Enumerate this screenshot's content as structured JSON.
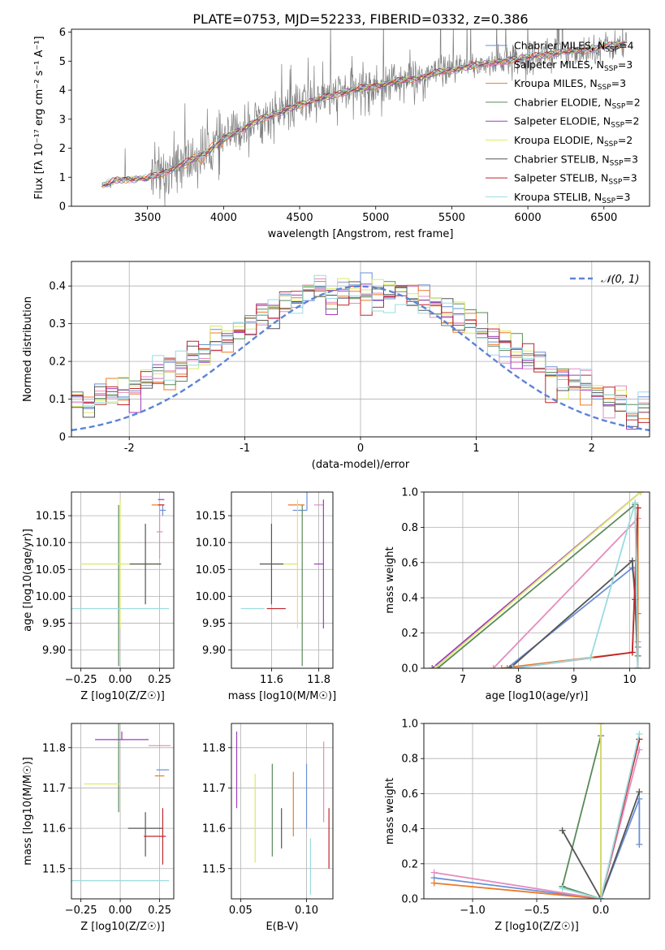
{
  "figure": {
    "title": "PLATE=0753, MJD=52233, FIBERID=0332, z=0.386"
  },
  "model_colors": {
    "Chabrier MILES": "#6a8fd8",
    "Salpeter MILES": "#e58cc0",
    "Kroupa MILES": "#ec7a27",
    "Chabrier ELODIE": "#5a8a5a",
    "Salpeter ELODIE": "#a03cbc",
    "Kroupa ELODIE": "#dde86a",
    "Chabrier STELIB": "#555555",
    "Salpeter STELIB": "#c1272d",
    "Kroupa STELIB": "#9adbe0"
  },
  "chart_data": [
    {
      "id": "spectrum",
      "type": "line",
      "xlabel": "wavelength [Angstrom, rest frame]",
      "ylabel": "Flux [fλ 10⁻¹⁷ erg cm⁻² s⁻¹ A⁻¹]",
      "xlim": [
        3000,
        6800
      ],
      "ylim": [
        0,
        6.1
      ],
      "xticks": [
        3500,
        4000,
        4500,
        5000,
        5500,
        6000,
        6500
      ],
      "yticks": [
        0,
        1,
        2,
        3,
        4,
        5,
        6
      ],
      "grid": false,
      "legend": {
        "position": "upper-right",
        "entries": [
          {
            "model": "Chabrier MILES",
            "n_ssp": "4"
          },
          {
            "model": "Salpeter MILES",
            "n_ssp": "3"
          },
          {
            "model": "Kroupa MILES",
            "n_ssp": "3"
          },
          {
            "model": "Chabrier ELODIE",
            "n_ssp": "2"
          },
          {
            "model": "Salpeter ELODIE",
            "n_ssp": "2"
          },
          {
            "model": "Kroupa ELODIE",
            "n_ssp": "2"
          },
          {
            "model": "Chabrier STELIB",
            "n_ssp": "3"
          },
          {
            "model": "Salpeter STELIB",
            "n_ssp": "3"
          },
          {
            "model": "Kroupa STELIB",
            "n_ssp": "3"
          }
        ]
      },
      "data_color": "#808080",
      "continuum": {
        "x": [
          3200,
          3300,
          3400,
          3500,
          3600,
          3700,
          3800,
          3900,
          4000,
          4100,
          4200,
          4300,
          4400,
          4500,
          4600,
          4700,
          4800,
          4900,
          5000,
          5100,
          5200,
          5300,
          5400,
          5500,
          5600,
          5700,
          5800,
          5900,
          6000,
          6100,
          6200,
          6300,
          6400,
          6500,
          6600,
          6650
        ],
        "y": [
          0.7,
          0.9,
          0.95,
          0.95,
          1.15,
          1.4,
          1.6,
          1.9,
          2.3,
          2.6,
          2.9,
          3.1,
          3.3,
          3.5,
          3.65,
          3.8,
          3.95,
          4.05,
          4.15,
          4.25,
          4.35,
          4.45,
          4.6,
          4.7,
          4.8,
          4.9,
          4.95,
          5.05,
          5.15,
          5.2,
          5.3,
          5.35,
          5.4,
          5.5,
          5.55,
          5.6
        ]
      }
    },
    {
      "id": "residual-histogram",
      "type": "histogram",
      "xlabel": "(data-model)/error",
      "ylabel": "Normed distribution",
      "xlim": [
        -2.5,
        2.5
      ],
      "ylim": [
        0,
        0.465
      ],
      "xticks": [
        -2,
        -1,
        0,
        1,
        2
      ],
      "yticks": [
        0.0,
        0.1,
        0.2,
        0.3,
        0.4
      ],
      "grid": true,
      "legend": {
        "position": "upper-right",
        "label": "𝒩(0, 1)"
      },
      "reference_curve": {
        "name": "normal",
        "mean": 0,
        "sigma": 1,
        "color": "#5b84d6"
      },
      "bin_width": 0.1
    },
    {
      "id": "age-vs-Z",
      "type": "errorbar",
      "xlabel": "Z [log10(Z/Z☉)]",
      "ylabel": "age  [log10(age/yr)]",
      "xlim": [
        -0.31,
        0.34
      ],
      "ylim": [
        9.866,
        10.194
      ],
      "xticks": [
        -0.25,
        0.0,
        0.25
      ],
      "xticklabels": [
        "−0.25",
        "0.00",
        "0.25"
      ],
      "yticks": [
        9.9,
        9.95,
        10.0,
        10.05,
        10.1,
        10.15
      ],
      "yticklabels": [
        "9.90",
        "9.95",
        "10.00",
        "10.05",
        "10.10",
        "10.15"
      ],
      "grid": true,
      "points": [
        {
          "model": "Chabrier MILES",
          "x": 0.27,
          "xerr": [
            0.02,
            0.02
          ],
          "y": 10.16,
          "yerr": [
            0.01,
            0.01
          ]
        },
        {
          "model": "Salpeter MILES",
          "x": 0.25,
          "xerr": [
            0.02,
            0.02
          ],
          "y": 10.12,
          "yerr": [
            0.05,
            0.05
          ]
        },
        {
          "model": "Kroupa MILES",
          "x": 0.24,
          "xerr": [
            0.04,
            0.04
          ],
          "y": 10.17,
          "yerr": [
            0.0,
            0.0
          ]
        },
        {
          "model": "Chabrier ELODIE",
          "x": -0.01,
          "xerr": [
            0.0,
            0.0
          ],
          "y": 10.02,
          "yerr": [
            0.15,
            0.15
          ]
        },
        {
          "model": "Salpeter ELODIE",
          "x": 0.26,
          "xerr": [
            0.02,
            0.02
          ],
          "y": 10.18,
          "yerr": [
            0.0,
            0.0
          ]
        },
        {
          "model": "Kroupa ELODIE",
          "x": 0.0,
          "xerr": [
            0.25,
            0.25
          ],
          "y": 10.06,
          "yerr": [
            0.12,
            0.12
          ]
        },
        {
          "model": "Chabrier STELIB",
          "x": 0.16,
          "xerr": [
            0.1,
            0.1
          ],
          "y": 10.06,
          "yerr": [
            0.075,
            0.075
          ]
        },
        {
          "model": "Salpeter STELIB",
          "x": 0.26,
          "xerr": [
            0.02,
            0.02
          ],
          "y": 10.17,
          "yerr": [
            0.0,
            0.0
          ]
        },
        {
          "model": "Kroupa STELIB",
          "x": 0.0,
          "xerr": [
            0.31,
            0.31
          ],
          "y": 9.977,
          "yerr": [
            0.0,
            0.0
          ]
        }
      ]
    },
    {
      "id": "age-vs-mass",
      "type": "errorbar",
      "xlabel": "mass [log10(M/M☉)]",
      "xlim": [
        11.43,
        11.86
      ],
      "ylim": [
        9.866,
        10.194
      ],
      "xticks": [
        11.6,
        11.8
      ],
      "xticklabels": [
        "11.6",
        "11.8"
      ],
      "yticks": [
        9.9,
        9.95,
        10.0,
        10.05,
        10.1,
        10.15
      ],
      "yticklabels": [
        "9.90",
        "9.95",
        "10.00",
        "10.05",
        "10.10",
        "10.15"
      ],
      "grid": true,
      "points": [
        {
          "model": "Chabrier MILES",
          "x": 11.75,
          "xerr": [
            0.06,
            0.0
          ],
          "y": 10.16,
          "yerr": [
            0.0,
            0.06
          ]
        },
        {
          "model": "Salpeter MILES",
          "x": 11.8,
          "xerr": [
            0.02,
            0.02
          ],
          "y": 10.17,
          "yerr": [
            0.0,
            0.0
          ]
        },
        {
          "model": "Kroupa MILES",
          "x": 11.72,
          "xerr": [
            0.05,
            0.02
          ],
          "y": 10.17,
          "yerr": [
            0.0,
            0.0
          ]
        },
        {
          "model": "Chabrier ELODIE",
          "x": 11.73,
          "xerr": [
            0.0,
            0.0
          ],
          "y": 10.02,
          "yerr": [
            0.15,
            0.15
          ]
        },
        {
          "model": "Salpeter ELODIE",
          "x": 11.82,
          "xerr": [
            0.04,
            0.0
          ],
          "y": 10.06,
          "yerr": [
            0.12,
            0.12
          ]
        },
        {
          "model": "Kroupa ELODIE",
          "x": 11.71,
          "xerr": [
            0.1,
            0.0
          ],
          "y": 10.06,
          "yerr": [
            0.12,
            0.12
          ]
        },
        {
          "model": "Chabrier STELIB",
          "x": 11.6,
          "xerr": [
            0.05,
            0.05
          ],
          "y": 10.06,
          "yerr": [
            0.075,
            0.075
          ]
        },
        {
          "model": "Salpeter STELIB",
          "x": 11.58,
          "xerr": [
            0.0,
            0.08
          ],
          "y": 9.977,
          "yerr": [
            0.0,
            0.0
          ]
        },
        {
          "model": "Kroupa STELIB",
          "x": 11.47,
          "xerr": [
            0.0,
            0.1
          ],
          "y": 9.977,
          "yerr": [
            0.0,
            0.0
          ]
        }
      ]
    },
    {
      "id": "weight-vs-age",
      "type": "line",
      "xlabel": "age  [log10(age/yr)]",
      "ylabel": "mass weight",
      "xlim": [
        6.3,
        10.36
      ],
      "ylim": [
        0,
        1.0
      ],
      "xticks": [
        7,
        8,
        9,
        10
      ],
      "yticks": [
        0.0,
        0.2,
        0.4,
        0.6,
        0.8,
        1.0
      ],
      "yticklabels": [
        "0.0",
        "0.2",
        "0.4",
        "0.6",
        "0.8",
        "1.0"
      ],
      "grid": true,
      "series": [
        {
          "model": "Chabrier MILES",
          "x": [
            7.8,
            10.05,
            10.15,
            10.15
          ],
          "y": [
            0.0,
            0.57,
            0.31,
            0.12
          ]
        },
        {
          "model": "Salpeter MILES",
          "x": [
            7.55,
            10.15,
            10.15
          ],
          "y": [
            0.0,
            0.85,
            0.15
          ]
        },
        {
          "model": "Kroupa MILES",
          "x": [
            7.7,
            10.05,
            10.15,
            10.15
          ],
          "y": [
            0.0,
            0.09,
            0.91,
            0.0
          ]
        },
        {
          "model": "Chabrier ELODIE",
          "x": [
            6.55,
            10.1,
            10.15
          ],
          "y": [
            0.0,
            0.93,
            0.07
          ]
        },
        {
          "model": "Salpeter ELODIE",
          "x": [
            6.45,
            10.2
          ],
          "y": [
            0.0,
            1.0
          ]
        },
        {
          "model": "Kroupa ELODIE",
          "x": [
            6.5,
            10.2
          ],
          "y": [
            0.0,
            1.0
          ]
        },
        {
          "model": "Chabrier STELIB",
          "x": [
            7.85,
            10.05,
            10.1,
            10.15
          ],
          "y": [
            0.0,
            0.61,
            0.39,
            0.0
          ]
        },
        {
          "model": "Salpeter STELIB",
          "x": [
            7.9,
            10.05,
            10.15
          ],
          "y": [
            0.0,
            0.09,
            0.91
          ]
        },
        {
          "model": "Kroupa STELIB",
          "x": [
            7.9,
            9.3,
            10.1,
            10.15
          ],
          "y": [
            0.0,
            0.06,
            0.94,
            0.0
          ]
        }
      ]
    },
    {
      "id": "mass-vs-Z",
      "type": "errorbar",
      "xlabel": "Z [log10(Z/Z☉)]",
      "ylabel": "mass [log10(M/M☉)]",
      "xlim": [
        -0.31,
        0.34
      ],
      "ylim": [
        11.425,
        11.86
      ],
      "xticks": [
        -0.25,
        0.0,
        0.25
      ],
      "xticklabels": [
        "−0.25",
        "0.00",
        "0.25"
      ],
      "yticks": [
        11.5,
        11.6,
        11.7,
        11.8
      ],
      "yticklabels": [
        "11.5",
        "11.6",
        "11.7",
        "11.8"
      ],
      "grid": true,
      "points": [
        {
          "model": "Chabrier MILES",
          "x": 0.27,
          "xerr": [
            0.04,
            0.04
          ],
          "y": 11.745,
          "yerr": [
            0.0,
            0.0
          ]
        },
        {
          "model": "Salpeter MILES",
          "x": 0.25,
          "xerr": [
            0.07,
            0.07
          ],
          "y": 11.805,
          "yerr": [
            0.0,
            0.0
          ]
        },
        {
          "model": "Kroupa MILES",
          "x": 0.25,
          "xerr": [
            0.03,
            0.03
          ],
          "y": 11.73,
          "yerr": [
            0.0,
            0.0
          ]
        },
        {
          "model": "Chabrier ELODIE",
          "x": -0.01,
          "xerr": [
            0.0,
            0.0
          ],
          "y": 11.7,
          "yerr": [
            0.06,
            0.17
          ]
        },
        {
          "model": "Salpeter ELODIE",
          "x": 0.01,
          "xerr": [
            0.17,
            0.17
          ],
          "y": 11.82,
          "yerr": [
            0.0,
            0.02
          ]
        },
        {
          "model": "Kroupa ELODIE",
          "x": 0.0,
          "xerr": [
            0.23,
            0.0
          ],
          "y": 11.71,
          "yerr": [
            0.0,
            0.0
          ]
        },
        {
          "model": "Chabrier STELIB",
          "x": 0.16,
          "xerr": [
            0.11,
            0.11
          ],
          "y": 11.6,
          "yerr": [
            0.07,
            0.04
          ]
        },
        {
          "model": "Salpeter STELIB",
          "x": 0.27,
          "xerr": [
            0.12,
            0.02
          ],
          "y": 11.58,
          "yerr": [
            0.07,
            0.07
          ]
        },
        {
          "model": "Kroupa STELIB",
          "x": 0.0,
          "xerr": [
            0.31,
            0.31
          ],
          "y": 11.47,
          "yerr": [
            0.0,
            0.0
          ]
        }
      ]
    },
    {
      "id": "mass-vs-EBV",
      "type": "errorbar",
      "xlabel": "E(B-V)",
      "xlim": [
        0.043,
        0.12
      ],
      "ylim": [
        11.425,
        11.86
      ],
      "xticks": [
        0.05,
        0.1
      ],
      "xticklabels": [
        "0.05",
        "0.10"
      ],
      "yticks": [
        11.5,
        11.6,
        11.7,
        11.8
      ],
      "yticklabels": [
        "11.5",
        "11.6",
        "11.7",
        "11.8"
      ],
      "grid": true,
      "points": [
        {
          "model": "Chabrier MILES",
          "x": 0.1,
          "xerr": [
            0.0,
            0.0
          ],
          "y": 11.69,
          "yerr": [
            0.09,
            0.07
          ]
        },
        {
          "model": "Salpeter MILES",
          "x": 0.113,
          "xerr": [
            0.0,
            0.0
          ],
          "y": 11.715,
          "yerr": [
            0.1,
            0.1
          ]
        },
        {
          "model": "Kroupa MILES",
          "x": 0.09,
          "xerr": [
            0.0,
            0.0
          ],
          "y": 11.66,
          "yerr": [
            0.08,
            0.08
          ]
        },
        {
          "model": "Chabrier ELODIE",
          "x": 0.074,
          "xerr": [
            0.0,
            0.0
          ],
          "y": 11.64,
          "yerr": [
            0.11,
            0.12
          ]
        },
        {
          "model": "Salpeter ELODIE",
          "x": 0.047,
          "xerr": [
            0.0,
            0.0
          ],
          "y": 11.745,
          "yerr": [
            0.095,
            0.095
          ]
        },
        {
          "model": "Kroupa ELODIE",
          "x": 0.061,
          "xerr": [
            0.0,
            0.0
          ],
          "y": 11.625,
          "yerr": [
            0.11,
            0.11
          ]
        },
        {
          "model": "Chabrier STELIB",
          "x": 0.081,
          "xerr": [
            0.0,
            0.0
          ],
          "y": 11.6,
          "yerr": [
            0.05,
            0.05
          ]
        },
        {
          "model": "Salpeter STELIB",
          "x": 0.117,
          "xerr": [
            0.0,
            0.0
          ],
          "y": 11.575,
          "yerr": [
            0.075,
            0.075
          ]
        },
        {
          "model": "Kroupa STELIB",
          "x": 0.103,
          "xerr": [
            0.0,
            0.0
          ],
          "y": 11.505,
          "yerr": [
            0.07,
            0.07
          ]
        }
      ]
    },
    {
      "id": "weight-vs-Z",
      "type": "line",
      "xlabel": "Z [log10(Z/Z☉)]",
      "ylabel": "mass weight",
      "xlim": [
        -1.38,
        0.38
      ],
      "ylim": [
        0,
        1.0
      ],
      "xticks": [
        -1.0,
        -0.5,
        0.0
      ],
      "xticklabels": [
        "−1.0",
        "−0.5",
        "0.0"
      ],
      "yticks": [
        0.0,
        0.2,
        0.4,
        0.6,
        0.8,
        1.0
      ],
      "yticklabels": [
        "0.0",
        "0.2",
        "0.4",
        "0.6",
        "0.8",
        "1.0"
      ],
      "grid": true,
      "series": [
        {
          "model": "Chabrier MILES",
          "x": [
            -1.3,
            0.0,
            0.3,
            0.3
          ],
          "y": [
            0.12,
            0.0,
            0.57,
            0.31
          ]
        },
        {
          "model": "Salpeter MILES",
          "x": [
            -1.3,
            0.0,
            0.3
          ],
          "y": [
            0.15,
            0.0,
            0.85
          ]
        },
        {
          "model": "Kroupa MILES",
          "x": [
            -1.3,
            0.0,
            0.3
          ],
          "y": [
            0.09,
            0.0,
            0.91
          ]
        },
        {
          "model": "Chabrier ELODIE",
          "x": [
            -0.3,
            0.0,
            0.0,
            -0.3
          ],
          "y": [
            0.07,
            0.93,
            0.0,
            0.07
          ]
        },
        {
          "model": "Salpeter ELODIE",
          "x": [
            0.0,
            0.0
          ],
          "y": [
            0.0,
            1.0
          ]
        },
        {
          "model": "Kroupa ELODIE",
          "x": [
            0.0,
            0.0
          ],
          "y": [
            0.0,
            1.0
          ]
        },
        {
          "model": "Chabrier STELIB",
          "x": [
            -0.3,
            0.0,
            0.3
          ],
          "y": [
            0.39,
            0.0,
            0.61
          ]
        },
        {
          "model": "Salpeter STELIB",
          "x": [
            0.0,
            0.3
          ],
          "y": [
            0.0,
            0.91
          ]
        },
        {
          "model": "Kroupa STELIB",
          "x": [
            -0.3,
            0.0,
            0.3
          ],
          "y": [
            0.06,
            0.0,
            0.94
          ]
        }
      ]
    }
  ]
}
